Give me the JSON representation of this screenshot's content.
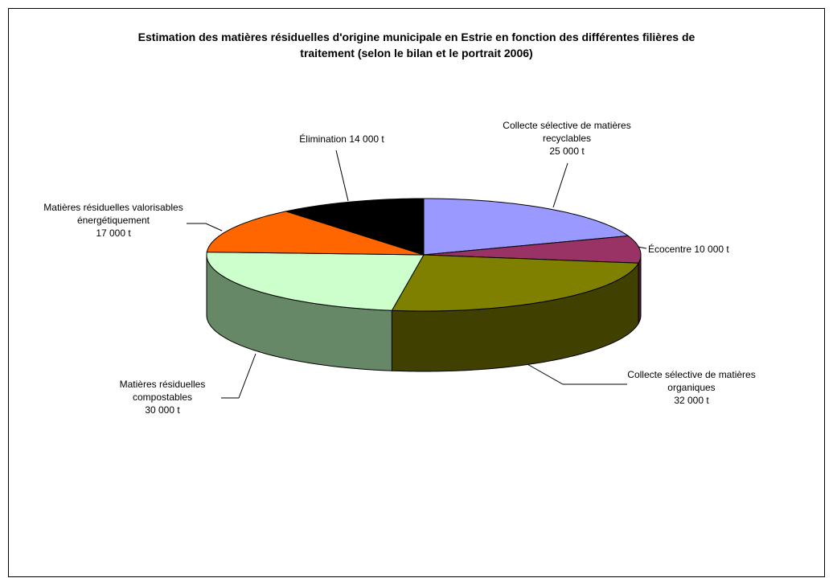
{
  "chart_data": {
    "type": "pie3d",
    "title": "Estimation des matières résiduelles d'origine municipale en Estrie en fonction des différentes filières de traitement (selon le bilan et le portrait 2006)",
    "categories": [
      "Collecte sélective de matières recyclables",
      "Écocentre",
      "Collecte sélective de matières organiques",
      "Matières résiduelles compostables",
      "Matières résiduelles valorisables énergétiquement",
      "Élimination"
    ],
    "values": [
      25000,
      10000,
      32000,
      30000,
      17000,
      14000
    ],
    "value_labels": [
      "25 000 t",
      "10 000 t",
      "32 000 t",
      "30 000 t",
      "17 000 t",
      "14 000 t"
    ],
    "colors": [
      "#9999ff",
      "#993366",
      "#808000",
      "#ccffcc",
      "#ff6600",
      "#000000"
    ]
  }
}
